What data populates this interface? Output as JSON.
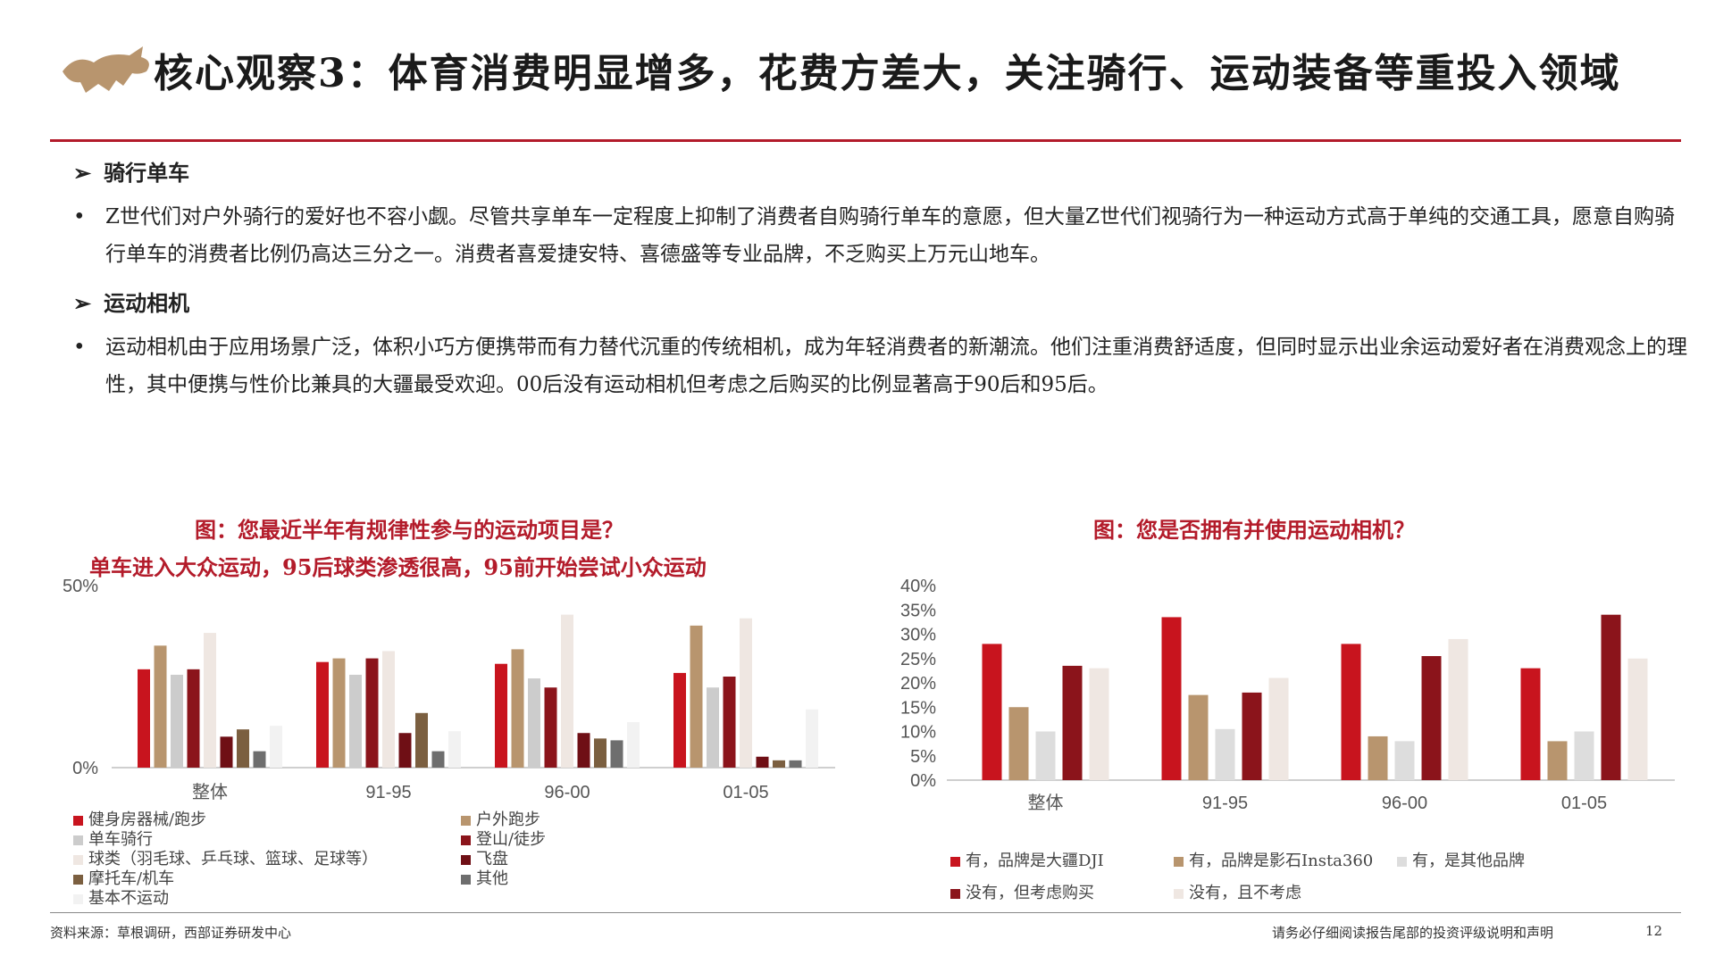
{
  "header": {
    "title": "核心观察3：体育消费明显增多，花费方差大，关注骑行、运动装备等重投入领域",
    "logo_icon": "bull-logo-icon"
  },
  "sections": [
    {
      "heading": "骑行单车",
      "text": "Z世代们对户外骑行的爱好也不容小觑。尽管共享单车一定程度上抑制了消费者自购骑行单车的意愿，但大量Z世代们视骑行为一种运动方式高于单纯的交通工具，愿意自购骑行单车的消费者比例仍高达三分之一。消费者喜爱捷安特、喜德盛等专业品牌，不乏购买上万元山地车。"
    },
    {
      "heading": "运动相机",
      "text": "运动相机由于应用场景广泛，体积小巧方便携带而有力替代沉重的传统相机，成为年轻消费者的新潮流。他们注重消费舒适度，但同时显示出业余运动爱好者在消费观念上的理性，其中便携与性价比兼具的大疆最受欢迎。00后没有运动相机但考虑之后购买的比例显著高于90后和95后。"
    }
  ],
  "chart_data": [
    {
      "type": "bar",
      "title": "图：您最近半年有规律性参与的运动项目是？",
      "subtitle": "单车进入大众运动，95后球类渗透很高，95前开始尝试小众运动",
      "categories": [
        "整体",
        "91-95",
        "96-00",
        "01-05"
      ],
      "ylim": [
        0,
        50
      ],
      "yticks": [
        "50%",
        "0%"
      ],
      "ytick_values": [
        50,
        0
      ],
      "colors": [
        "#c8141e",
        "#b8956e",
        "#cccccc",
        "#8b141b",
        "#efe7e2",
        "#6f0f15",
        "#7b5f40",
        "#6e6e6e",
        "#f2f2f2"
      ],
      "series": [
        {
          "name": "健身房器械/跑步",
          "values": [
            27,
            29,
            28.5,
            26
          ]
        },
        {
          "name": "户外跑步",
          "values": [
            33.5,
            30,
            32.5,
            39
          ]
        },
        {
          "name": "单车骑行",
          "values": [
            25.5,
            25.5,
            24.5,
            22
          ]
        },
        {
          "name": "登山/徒步",
          "values": [
            27,
            30,
            22,
            25
          ]
        },
        {
          "name": "球类（羽毛球、乒乓球、篮球、足球等）",
          "values": [
            37,
            32,
            42,
            41
          ]
        },
        {
          "name": "飞盘",
          "values": [
            8.5,
            9.5,
            9.5,
            3
          ]
        },
        {
          "name": "摩托车/机车",
          "values": [
            10.5,
            15,
            8,
            2
          ]
        },
        {
          "name": "其他",
          "values": [
            4.5,
            4.5,
            7.5,
            2
          ]
        },
        {
          "name": "基本不运动",
          "values": [
            11.5,
            10,
            12.5,
            16
          ]
        }
      ]
    },
    {
      "type": "bar",
      "title": "图：您是否拥有并使用运动相机？",
      "categories": [
        "整体",
        "91-95",
        "96-00",
        "01-05"
      ],
      "ylim": [
        0,
        40
      ],
      "yticks": [
        "40%",
        "35%",
        "30%",
        "25%",
        "20%",
        "15%",
        "10%",
        "5%",
        "0%"
      ],
      "ytick_values": [
        40,
        35,
        30,
        25,
        20,
        15,
        10,
        5,
        0
      ],
      "colors": [
        "#c8141e",
        "#b8956e",
        "#dddddd",
        "#8b141b",
        "#efe7e2"
      ],
      "series": [
        {
          "name": "有，品牌是大疆DJI",
          "values": [
            28,
            33.5,
            28,
            23
          ]
        },
        {
          "name": "有，品牌是影石Insta360",
          "values": [
            15,
            17.5,
            9,
            8
          ]
        },
        {
          "name": "有，是其他品牌",
          "values": [
            10,
            10.5,
            8,
            10
          ]
        },
        {
          "name": "没有，但考虑购买",
          "values": [
            23.5,
            18,
            25.5,
            34
          ]
        },
        {
          "name": "没有，且不考虑",
          "values": [
            23,
            21,
            29,
            25
          ]
        }
      ]
    }
  ],
  "footer": {
    "source": "资料来源：草根调研，西部证券研发中心",
    "disclaimer": "请务必仔细阅读报告尾部的投资评级说明和声明",
    "page": "12"
  }
}
